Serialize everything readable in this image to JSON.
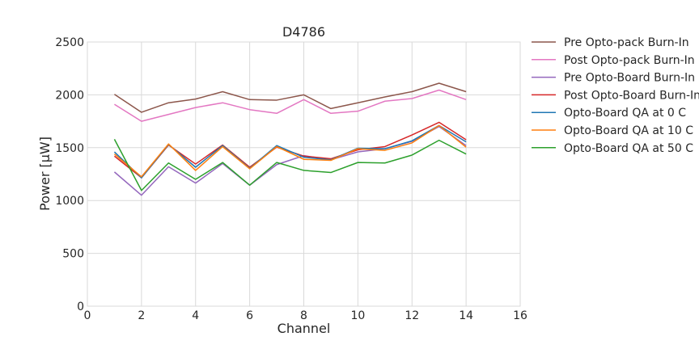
{
  "chart_data": {
    "type": "line",
    "title": "D4786",
    "xlabel": "Channel",
    "ylabel": "Power [µW]",
    "xlim": [
      0,
      16
    ],
    "ylim": [
      0,
      2500
    ],
    "xticks": [
      0,
      2,
      4,
      6,
      8,
      10,
      12,
      14,
      16
    ],
    "yticks": [
      0,
      500,
      1000,
      1500,
      2000,
      2500
    ],
    "grid": true,
    "legend_position": "outside-right",
    "x": [
      1,
      2,
      3,
      4,
      5,
      6,
      7,
      8,
      9,
      10,
      11,
      12,
      13,
      14
    ],
    "series": [
      {
        "name": "Pre Opto-pack Burn-In",
        "color": "#8c564b",
        "values": [
          2005,
          1835,
          1925,
          1960,
          2030,
          1955,
          1950,
          2000,
          1870,
          1925,
          1980,
          2030,
          2110,
          2030
        ]
      },
      {
        "name": "Post Opto-pack Burn-In",
        "color": "#e377c2",
        "values": [
          1910,
          1750,
          1815,
          1880,
          1925,
          1860,
          1825,
          1955,
          1825,
          1845,
          1940,
          1965,
          2045,
          1955
        ]
      },
      {
        "name": "Pre Opto-Board Burn-In",
        "color": "#9467bd",
        "values": [
          1270,
          1050,
          1320,
          1165,
          1350,
          1145,
          1340,
          1425,
          1385,
          1460,
          1490,
          1560,
          1700,
          1520
        ]
      },
      {
        "name": "Post Opto-Board Burn-In",
        "color": "#d62728",
        "values": [
          1420,
          1215,
          1525,
          1345,
          1525,
          1315,
          1505,
          1420,
          1395,
          1480,
          1510,
          1620,
          1740,
          1575
        ]
      },
      {
        "name": "Opto-Board QA at 0 C",
        "color": "#1f77b4",
        "values": [
          1460,
          1215,
          1530,
          1315,
          1520,
          1305,
          1520,
          1410,
          1385,
          1495,
          1490,
          1565,
          1710,
          1555
        ]
      },
      {
        "name": "Opto-Board QA at 10 C",
        "color": "#ff7f0e",
        "values": [
          1440,
          1225,
          1535,
          1285,
          1510,
          1300,
          1510,
          1390,
          1380,
          1490,
          1475,
          1545,
          1710,
          1505
        ]
      },
      {
        "name": "Opto-Board QA at 50 C",
        "color": "#2ca02c",
        "values": [
          1580,
          1095,
          1355,
          1200,
          1360,
          1145,
          1360,
          1285,
          1265,
          1360,
          1355,
          1430,
          1570,
          1440
        ]
      }
    ]
  }
}
